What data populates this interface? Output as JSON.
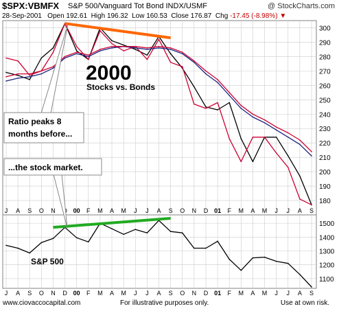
{
  "header": {
    "ticker": "$SPX:VBMFX",
    "subtitle": "S&P 500/Vanguard Tot Bond  INDX/USMF",
    "brand": "@ StockCharts.com",
    "date": "28-Sep-2001",
    "open_label": "Open",
    "open": "192.61",
    "high_label": "High",
    "high": "196.32",
    "low_label": "Low",
    "low": "160.53",
    "close_label": "Close",
    "close": "176.87",
    "chg_label": "Chg",
    "chg": "-17.45 (-8.98%)"
  },
  "annotations": {
    "title": "2000",
    "caption": "Stocks vs. Bonds",
    "callout1": "Ratio peaks 8 months before...",
    "callout2": "...the stock market.",
    "lower_label": "S&P 500"
  },
  "footer": {
    "left": "www.ciovaccocapital.com",
    "mid": "For illustrative purposes only.",
    "right": "Use at own risk."
  },
  "colors": {
    "price": "#000000",
    "ma_fast": "#cc0033",
    "ma_slow": "#1a237e",
    "upper_trend": "#ff6600",
    "lower_trend": "#22aa22",
    "grid": "#cccccc",
    "callout_fill": "#ffffff",
    "callout_stroke": "#888888",
    "chg_negative": "#c00000"
  },
  "chart_data": [
    {
      "type": "line",
      "panel": "upper",
      "x": [
        "Jul 1999",
        "Aug 1999",
        "Sep 1999",
        "Oct 1999",
        "Nov 1999",
        "Dec 1999",
        "Jan 2000",
        "Feb 2000",
        "Mar 2000",
        "Apr 2000",
        "May 2000",
        "Jun 2000",
        "Jul 2000",
        "Aug 2000",
        "Sep 2000",
        "Oct 2000",
        "Nov 2000",
        "Dec 2000",
        "Jan 2001",
        "Feb 2001",
        "Mar 2001",
        "Apr 2001",
        "May 2001",
        "Jun 2001",
        "Jul 2001",
        "Aug 2001",
        "Sep 2001"
      ],
      "x_tick_labels": [
        "J",
        "A",
        "S",
        "O",
        "N",
        "D",
        "00",
        "F",
        "M",
        "A",
        "M",
        "J",
        "J",
        "A",
        "S",
        "O",
        "N",
        "D",
        "01",
        "F",
        "M",
        "A",
        "M",
        "J",
        "J",
        "A",
        "S"
      ],
      "ylim": [
        170,
        305
      ],
      "y_ticks": [
        180,
        190,
        200,
        210,
        220,
        230,
        240,
        250,
        260,
        270,
        280,
        290,
        300
      ],
      "grid": true,
      "series": [
        {
          "color": "#000000",
          "values": [
            269,
            267,
            264,
            279,
            286,
            303,
            284,
            278,
            300,
            291,
            288,
            285,
            281,
            294,
            282,
            272,
            259,
            245,
            243,
            248,
            223,
            207,
            224,
            224,
            211,
            197,
            177
          ]
        },
        {
          "color": "#cc0033",
          "values": [
            279,
            277,
            267,
            270,
            283,
            303,
            287,
            278,
            298,
            289,
            284,
            287,
            278,
            292,
            276,
            273,
            247,
            244,
            248,
            223,
            207,
            224,
            224,
            213,
            203,
            181,
            177
          ]
        },
        {
          "color": "#1a237e",
          "values": [
            263,
            265,
            266,
            268,
            272,
            279,
            282,
            280,
            284,
            286,
            287,
            286,
            285,
            286,
            285,
            282,
            276,
            268,
            262,
            253,
            244,
            238,
            234,
            229,
            224,
            219,
            211
          ]
        },
        {
          "color": "#cc0033",
          "values": [
            266,
            268,
            268,
            270,
            273,
            280,
            283,
            281,
            285,
            287,
            287,
            287,
            286,
            287,
            286,
            283,
            277,
            270,
            264,
            255,
            246,
            240,
            236,
            231,
            227,
            222,
            214
          ]
        }
      ],
      "trendline": {
        "color": "#ff6600",
        "from": [
          "Dec 1999",
          303
        ],
        "to": [
          "Sep 2000",
          293
        ]
      }
    },
    {
      "type": "line",
      "panel": "lower",
      "x": [
        "Jul 1999",
        "Aug 1999",
        "Sep 1999",
        "Oct 1999",
        "Nov 1999",
        "Dec 1999",
        "Jan 2000",
        "Feb 2000",
        "Mar 2000",
        "Apr 2000",
        "May 2000",
        "Jun 2000",
        "Jul 2000",
        "Aug 2000",
        "Sep 2000",
        "Oct 2000",
        "Nov 2000",
        "Dec 2000",
        "Jan 2001",
        "Feb 2001",
        "Mar 2001",
        "Apr 2001",
        "May 2001",
        "Jun 2001",
        "Jul 2001",
        "Aug 2001",
        "Sep 2001"
      ],
      "x_tick_labels": [
        "J",
        "A",
        "S",
        "O",
        "N",
        "D",
        "00",
        "F",
        "M",
        "A",
        "M",
        "J",
        "J",
        "A",
        "S",
        "O",
        "N",
        "D",
        "01",
        "F",
        "M",
        "A",
        "M",
        "J",
        "J",
        "A",
        "S"
      ],
      "ylim": [
        1030,
        1560
      ],
      "y_ticks": [
        1100,
        1200,
        1300,
        1400,
        1500
      ],
      "grid": true,
      "series": [
        {
          "name": "S&P 500",
          "color": "#000000",
          "values": [
            1340,
            1320,
            1285,
            1360,
            1390,
            1470,
            1395,
            1365,
            1500,
            1460,
            1420,
            1455,
            1430,
            1520,
            1440,
            1430,
            1320,
            1320,
            1370,
            1240,
            1160,
            1250,
            1255,
            1225,
            1210,
            1130,
            1040
          ]
        }
      ],
      "trendline": {
        "color": "#22aa22",
        "from": [
          "Nov 1999",
          1470
        ],
        "to": [
          "Sep 2000",
          1535
        ]
      }
    }
  ]
}
